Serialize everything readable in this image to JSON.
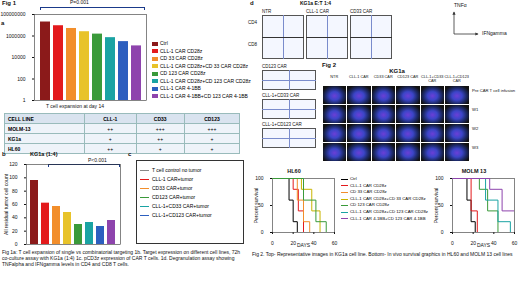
{
  "figures": [
    {
      "label": "Fig 1",
      "caption": "Fig 1a: T cell expansion of single vs combinatorial targeting 1b. Target expression on different cell lines, 72h co-culture assay with KG1a (1:4) 1c. pCD3z expression of CAR T cells. 1d. Degranulation assay showing TNFalpha and IFNgamma levels in CD4 and CD8 T cells."
    },
    {
      "label": "Fig 2",
      "caption": "Fig 2. Top- Representative images in KG1a cell line. Bottom- In vivo survival graphics in HL60 and MOLM 13 cell lines"
    }
  ],
  "chart_data": [
    {
      "type": "bar",
      "panel": "a",
      "title": "T cell expansion at day 14",
      "annotation": "P=0.001",
      "log": "y",
      "categories": [
        "Ctrl",
        "CLL-1 CAR CD28z",
        "CD 33 CAR CD28z",
        "CLL-1 CAR CD28z+CD 33 CAR CD28z",
        "CD 123 CAR CD28z",
        "CLL-1 CAR CD28z+CD 123 CAR CD28z",
        "CLL-1 CAR 4-1BB",
        "CLL-1 CAR 4-1BB+CD 123 CAR 4-1BB"
      ],
      "values": [
        20000000,
        9000000,
        5000000,
        2500000,
        1500000,
        700000,
        300000,
        120000
      ],
      "colors": [
        "#8b1a1a",
        "#e31a1c",
        "#f28e2b",
        "#e8c32a",
        "#3a9a3a",
        "#1aa3a3",
        "#2c5fbf",
        "#8e44ad"
      ],
      "ylim": [
        1,
        100000000
      ],
      "yticks": [
        1,
        100,
        10000,
        1000000,
        100000000
      ],
      "tick_labels": "y",
      "legend": "right"
    },
    {
      "type": "bar",
      "panel": "b",
      "title": "KG1a (1:4)",
      "y_label": "All residual tumor cell count",
      "annotation": "P<0.001",
      "categories": [
        null,
        null,
        null,
        null,
        null,
        null,
        null,
        null
      ],
      "values": [
        96,
        62,
        57,
        48,
        30,
        33,
        27,
        36
      ],
      "colors": [
        "#8b1a1a",
        "#e31a1c",
        "#f28e2b",
        "#e8c32a",
        "#3a9a3a",
        "#1aa3a3",
        "#2c5fbf",
        "#8e44ad"
      ],
      "ylim": [
        0,
        120
      ],
      "yticks": [
        0,
        20,
        40,
        60,
        80,
        100,
        120
      ],
      "tick_labels": "y"
    },
    {
      "type": "line",
      "title": "HL60",
      "x_label": "DAYS",
      "y_label": "Percent survival",
      "legend": "right",
      "xlim": [
        0,
        60
      ],
      "xticks": [
        0,
        20,
        40,
        60
      ],
      "ylim": [
        0,
        100
      ],
      "yticks": [
        0,
        50,
        100
      ],
      "series": [
        {
          "name": "Ctrl",
          "color": "#000000",
          "x": [
            0,
            16,
            20,
            24
          ],
          "values": [
            100,
            60,
            20,
            0
          ]
        },
        {
          "name": "CLL-1 CAR CD28z",
          "color": "#e31a1c",
          "x": [
            0,
            20,
            25,
            30
          ],
          "values": [
            100,
            80,
            40,
            0
          ]
        },
        {
          "name": "CD 33 CAR CD28z",
          "color": "#f28e2b",
          "x": [
            0,
            24,
            30,
            36
          ],
          "values": [
            100,
            60,
            20,
            0
          ]
        },
        {
          "name": "CLL-1 CAR CD28z+CD 33 CAR CD28z",
          "color": "#c9b400",
          "x": [
            0,
            28,
            38,
            46
          ],
          "values": [
            100,
            80,
            40,
            0
          ]
        },
        {
          "name": "CD 123 CAR CD28z",
          "color": "#3a9a3a",
          "x": [
            0,
            30,
            42,
            52
          ],
          "values": [
            100,
            60,
            20,
            0
          ]
        }
      ]
    },
    {
      "type": "line",
      "title": "MOLM 13",
      "x_label": "DAYS",
      "y_label": "Percent survival",
      "xlim": [
        0,
        60
      ],
      "xticks": [
        0,
        20,
        40,
        60
      ],
      "ylim": [
        0,
        100
      ],
      "yticks": [
        0,
        50,
        100
      ],
      "series": [
        {
          "name": "Ctrl",
          "color": "#000000",
          "x": [
            0,
            14,
            18,
            22
          ],
          "values": [
            100,
            60,
            20,
            0
          ]
        },
        {
          "name": "CLL-1 CAR CD28z",
          "color": "#e31a1c",
          "x": [
            0,
            18,
            24
          ],
          "values": [
            100,
            40,
            0
          ]
        },
        {
          "name": "CD 123 CAR CD28z",
          "color": "#3a9a3a",
          "x": [
            0,
            26,
            34,
            44
          ],
          "values": [
            100,
            80,
            40,
            0
          ]
        },
        {
          "name": "CLL-1 CAR CD28z+CD 123 CAR CD28z",
          "color": "#1aa3a3",
          "x": [
            0,
            32,
            44,
            56
          ],
          "values": [
            100,
            60,
            20,
            0
          ]
        },
        {
          "name": "CLL-1 CAR 4-1BB+CD 123 CAR 4-1BB",
          "color": "#8e44ad",
          "x": [
            0,
            36,
            48,
            60
          ],
          "values": [
            100,
            80,
            40,
            20
          ]
        }
      ]
    }
  ],
  "table": {
    "header": [
      "CELL LINE",
      "CLL-1",
      "CD33",
      "CD123"
    ],
    "rows": [
      [
        "MOLM-13",
        "++",
        "+++",
        "+++"
      ],
      [
        "KG1a",
        "+",
        "++",
        "+"
      ],
      [
        "HL60",
        "++",
        "+",
        "+"
      ]
    ]
  },
  "histograms": {
    "panel": "c",
    "labels": [
      "T cell control no tumor",
      "CLL-1 CAR+tumor",
      "CD33 CAR+tumor",
      "CD123 CAR+tumor",
      "CLL-1+CD33 CAR+tumor",
      "CLL-1+CD123 CAR+tumor"
    ],
    "colors": [
      "#888888",
      "#e31a1c",
      "#f28e2b",
      "#3a9a3a",
      "#1aa3a3",
      "#2c5fbf"
    ]
  },
  "flow": {
    "panel": "d",
    "title": "KG1a E:T 1:4",
    "panels": [
      "NTR",
      "CLL-1 CAR",
      "CD33 CAR",
      "CD123 CAR",
      "CLL-1+CD33 CAR",
      "CLL-1+CD123 CAR"
    ],
    "rows": [
      "CD4",
      "CD8"
    ],
    "axes": {
      "y": "TNFα",
      "x": "IFNgamma"
    }
  },
  "images": {
    "title": "KG1a",
    "columns": [
      "NTR",
      "CLL-1 CAR",
      "CD33 CAR",
      "CD123 CAR",
      "CLL-1+CD33 CAR",
      "CLL-1+CD123 CAR"
    ],
    "rows": [
      "Pre CAR T cell infusion",
      "W1",
      "W2",
      "W3"
    ]
  }
}
